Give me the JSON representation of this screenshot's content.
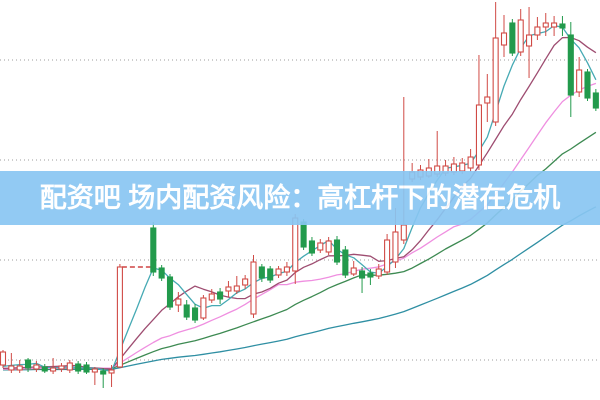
{
  "banner": {
    "title": "配资吧 场内配资风险：高杠杆下的潜在危机",
    "background": "#89c6f2",
    "background_opacity": 0.92,
    "text_color": "#ffffff"
  },
  "colors": {
    "background": "#ffffff",
    "up_candle": "#d04a45",
    "down_candle": "#229a4c",
    "gridline": "#9e9e9e",
    "halt_dash": "#cf4343"
  },
  "chart_data": {
    "type": "candlestick",
    "title": "",
    "xlabel": "",
    "ylabel": "",
    "axis_labels_visible": false,
    "grid": "dotted-horizontal",
    "price_scale_note": "no axis labels visible; prices estimated with gridline spacing = 5 units",
    "gridline_prices": [
      5,
      10,
      15,
      20
    ],
    "ylim": [
      3,
      23
    ],
    "sessions": 72,
    "candle_convention": "red=up hollow, green=down solid (Chinese style)",
    "halt_gap": {
      "after_session": 14,
      "missing_sessions": [
        15,
        16,
        17
      ],
      "dashed_price": 9.65,
      "fill_close": 9.65
    },
    "ma_series": [
      {
        "name": "MA5",
        "period": 5,
        "color": "#46aab4"
      },
      {
        "name": "MA10",
        "period": 10,
        "color": "#9e4d71"
      },
      {
        "name": "MA20",
        "period": 20,
        "color": "#ef8fe0"
      },
      {
        "name": "MA30",
        "period": 30,
        "color": "#3d8a52"
      },
      {
        "name": "MA60",
        "period": 60,
        "color": "#2f8fa3"
      }
    ],
    "prehistory_closes": [
      4.5,
      4.45,
      4.55,
      4.5,
      4.4,
      4.45,
      4.5,
      4.55,
      4.5,
      4.45,
      4.4,
      4.5,
      4.55,
      4.6,
      4.5,
      4.45,
      4.5,
      4.55,
      4.5,
      4.4,
      4.45,
      4.55,
      4.6,
      4.5,
      4.45,
      4.5,
      4.4,
      4.45,
      4.5,
      4.55,
      4.5,
      4.45,
      4.55,
      4.6,
      4.5,
      4.45,
      4.4,
      4.5,
      4.55,
      4.5,
      4.45,
      4.5,
      4.55,
      4.45,
      4.4,
      4.5,
      4.55,
      4.5,
      4.45,
      4.5,
      4.55,
      4.6,
      4.5,
      4.45,
      4.5,
      4.4,
      4.45,
      4.5,
      4.55,
      4.5
    ],
    "candles_format": [
      "session_index",
      "open",
      "high",
      "low",
      "close"
    ],
    "candles": [
      [
        0,
        4.75,
        5.5,
        4.6,
        5.4
      ],
      [
        1,
        4.5,
        5.35,
        4.35,
        4.7
      ],
      [
        2,
        4.5,
        5.0,
        4.35,
        4.7
      ],
      [
        3,
        5.0,
        5.1,
        4.4,
        4.6
      ],
      [
        4,
        4.55,
        4.95,
        4.4,
        4.75
      ],
      [
        5,
        4.65,
        4.8,
        4.35,
        4.45
      ],
      [
        6,
        4.45,
        5.1,
        4.3,
        4.6
      ],
      [
        7,
        4.55,
        4.85,
        4.4,
        4.7
      ],
      [
        8,
        4.5,
        5.0,
        4.35,
        4.85
      ],
      [
        9,
        4.8,
        4.95,
        4.3,
        4.45
      ],
      [
        10,
        4.75,
        4.9,
        4.3,
        4.4
      ],
      [
        11,
        4.4,
        4.65,
        3.75,
        4.55
      ],
      [
        12,
        4.45,
        4.6,
        3.6,
        4.3
      ],
      [
        13,
        4.35,
        4.75,
        3.65,
        4.5
      ],
      [
        14,
        4.65,
        9.8,
        4.6,
        9.65
      ],
      [
        18,
        11.6,
        11.9,
        9.2,
        9.4
      ],
      [
        19,
        9.6,
        9.75,
        8.95,
        9.1
      ],
      [
        20,
        9.15,
        9.3,
        7.5,
        7.65
      ],
      [
        21,
        7.75,
        8.4,
        7.4,
        8.05
      ],
      [
        22,
        7.75,
        8.0,
        7.0,
        7.15
      ],
      [
        23,
        7.6,
        7.8,
        6.85,
        7.0
      ],
      [
        24,
        7.1,
        8.25,
        7.0,
        8.1
      ],
      [
        25,
        8.0,
        8.55,
        7.85,
        8.3
      ],
      [
        26,
        8.4,
        8.6,
        7.8,
        8.05
      ],
      [
        27,
        8.45,
        8.95,
        8.15,
        8.65
      ],
      [
        28,
        8.45,
        9.2,
        8.3,
        8.7
      ],
      [
        29,
        8.75,
        9.25,
        8.55,
        9.05
      ],
      [
        30,
        7.3,
        10.25,
        7.1,
        9.9
      ],
      [
        31,
        9.65,
        9.8,
        8.9,
        9.1
      ],
      [
        32,
        9.55,
        9.7,
        8.85,
        9.0
      ],
      [
        33,
        9.25,
        9.7,
        9.1,
        9.55
      ],
      [
        34,
        9.4,
        9.9,
        9.2,
        9.65
      ],
      [
        35,
        9.45,
        12.3,
        8.8,
        12.1
      ],
      [
        36,
        11.9,
        12.05,
        10.5,
        10.65
      ],
      [
        37,
        10.95,
        11.15,
        10.2,
        10.35
      ],
      [
        38,
        10.5,
        11.05,
        10.35,
        10.85
      ],
      [
        39,
        10.4,
        11.15,
        10.25,
        10.95
      ],
      [
        40,
        11.0,
        11.2,
        9.75,
        9.9
      ],
      [
        41,
        10.5,
        10.7,
        9.1,
        9.25
      ],
      [
        42,
        9.3,
        9.95,
        9.2,
        9.6
      ],
      [
        43,
        9.45,
        9.65,
        8.35,
        9.1
      ],
      [
        44,
        9.35,
        9.55,
        8.75,
        9.15
      ],
      [
        45,
        9.2,
        9.8,
        9.05,
        9.55
      ],
      [
        46,
        9.4,
        11.3,
        9.25,
        11.0
      ],
      [
        47,
        9.9,
        12.6,
        9.6,
        11.4
      ],
      [
        48,
        11.0,
        18.15,
        10.8,
        11.75
      ],
      [
        49,
        14.05,
        14.85,
        13.9,
        14.4
      ],
      [
        50,
        14.15,
        14.75,
        14.0,
        14.5
      ],
      [
        51,
        14.2,
        15.05,
        14.1,
        14.6
      ],
      [
        52,
        14.3,
        16.45,
        14.15,
        14.7
      ],
      [
        53,
        14.35,
        15.0,
        14.2,
        14.7
      ],
      [
        54,
        14.4,
        15.15,
        14.25,
        14.8
      ],
      [
        55,
        14.45,
        15.1,
        14.3,
        14.85
      ],
      [
        56,
        14.6,
        15.55,
        14.4,
        15.15
      ],
      [
        57,
        14.75,
        20.25,
        14.5,
        17.75
      ],
      [
        58,
        17.85,
        19.3,
        16.9,
        18.15
      ],
      [
        59,
        16.9,
        22.9,
        16.7,
        21.1
      ],
      [
        60,
        20.75,
        22.25,
        20.15,
        21.35
      ],
      [
        61,
        21.85,
        22.05,
        20.2,
        20.35
      ],
      [
        62,
        20.4,
        22.55,
        20.2,
        22.0
      ],
      [
        63,
        20.7,
        22.65,
        19.1,
        21.25
      ],
      [
        64,
        21.25,
        22.15,
        21.0,
        21.65
      ],
      [
        65,
        21.65,
        22.35,
        21.2,
        21.85
      ],
      [
        66,
        21.65,
        22.2,
        21.2,
        21.85
      ],
      [
        67,
        21.8,
        22.2,
        21.2,
        21.6
      ],
      [
        68,
        21.25,
        21.9,
        17.15,
        18.25
      ],
      [
        69,
        18.4,
        20.15,
        18.15,
        19.5
      ],
      [
        70,
        19.4,
        19.55,
        17.95,
        18.1
      ],
      [
        71,
        18.35,
        18.55,
        17.45,
        17.6
      ]
    ]
  }
}
